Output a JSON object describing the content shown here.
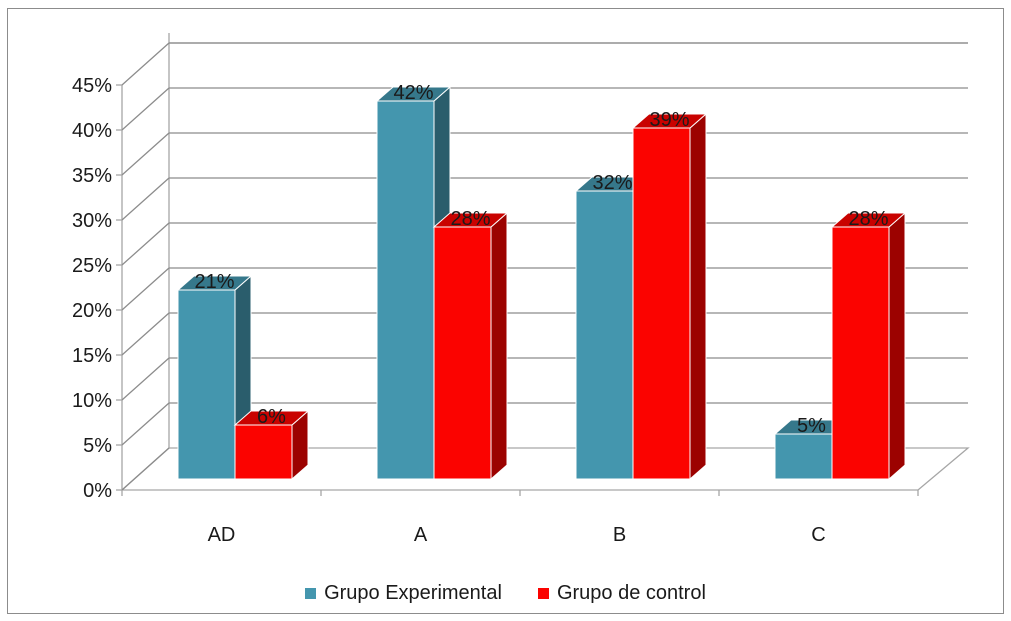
{
  "chart_data": {
    "type": "bar",
    "categories": [
      "AD",
      "A",
      "B",
      "C"
    ],
    "series": [
      {
        "name": "Grupo Experimental",
        "values": [
          21,
          42,
          32,
          5
        ],
        "labels": [
          "21%",
          "42%",
          "32%",
          "5%"
        ],
        "color": "#4496ae"
      },
      {
        "name": "Grupo de control",
        "values": [
          6,
          28,
          39,
          28
        ],
        "labels": [
          "6%",
          "28%",
          "39%",
          "28%"
        ],
        "color": "#fb0300"
      }
    ],
    "y_ticks": [
      "0%",
      "5%",
      "10%",
      "15%",
      "20%",
      "25%",
      "30%",
      "35%",
      "40%",
      "45%"
    ],
    "ylim": [
      0,
      45
    ],
    "grid": true,
    "legend_position": "bottom",
    "three_d": true
  }
}
